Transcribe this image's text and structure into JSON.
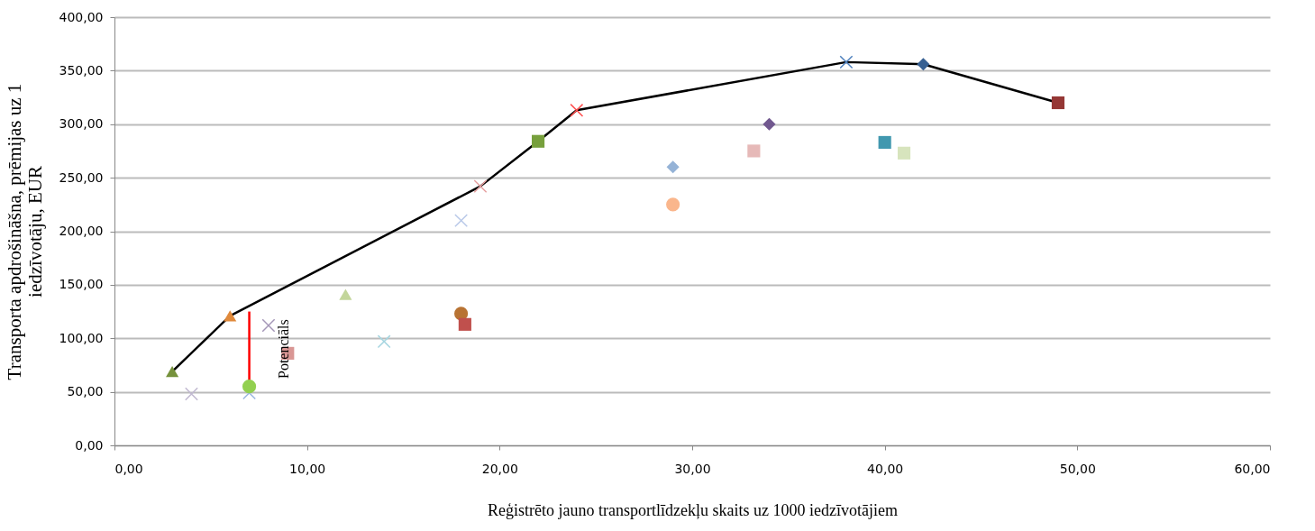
{
  "chart_data": {
    "type": "scatter",
    "xlabel": "Reģistrēto jauno transportlīdzekļu skaits  uz 1000 iedzīvotājiem",
    "ylabel": "Transporta  apdrošināšna, prēmijas uz 1\niedzīvotāju, EUR",
    "xlim": [
      0,
      60
    ],
    "ylim": [
      0,
      400
    ],
    "xticks": [
      {
        "value": 0,
        "label": "0,00"
      },
      {
        "value": 10,
        "label": "10,00"
      },
      {
        "value": 20,
        "label": "20,00"
      },
      {
        "value": 30,
        "label": "30,00"
      },
      {
        "value": 40,
        "label": "40,00"
      },
      {
        "value": 50,
        "label": "50,00"
      },
      {
        "value": 60,
        "label": "60,00"
      }
    ],
    "yticks": [
      {
        "value": 0,
        "label": "0,00"
      },
      {
        "value": 50,
        "label": "50,00"
      },
      {
        "value": 100,
        "label": "100,00"
      },
      {
        "value": 150,
        "label": "150,00"
      },
      {
        "value": 200,
        "label": "200,00"
      },
      {
        "value": 250,
        "label": "250,00"
      },
      {
        "value": 300,
        "label": "300,00"
      },
      {
        "value": 350,
        "label": "350,00"
      },
      {
        "value": 400,
        "label": "400,00"
      }
    ],
    "grid": "y",
    "annotations": [
      {
        "text": "Potenciāls",
        "x": 8.8,
        "y": 90
      }
    ],
    "series": [
      {
        "type": "line",
        "color": "#000000",
        "marker": "none",
        "x": [
          3,
          6,
          19,
          22,
          24,
          38,
          42,
          49
        ],
        "values": [
          69,
          121,
          242,
          284,
          313,
          358,
          356,
          320
        ]
      },
      {
        "type": "line",
        "color": "#ff0000",
        "marker": "none",
        "x": [
          7,
          7
        ],
        "values": [
          55,
          125
        ]
      },
      {
        "color": "#76923c",
        "marker": "triangle",
        "x": [
          3
        ],
        "values": [
          69
        ]
      },
      {
        "color": "#e08a3c",
        "marker": "triangle",
        "x": [
          6
        ],
        "values": [
          121
        ]
      },
      {
        "color": "#c0b8d0",
        "marker": "cross",
        "x": [
          4
        ],
        "values": [
          48
        ]
      },
      {
        "color": "#9cb8e0",
        "marker": "cross",
        "x": [
          7
        ],
        "values": [
          49
        ]
      },
      {
        "color": "#92d050",
        "marker": "circle",
        "x": [
          7
        ],
        "values": [
          55
        ]
      },
      {
        "color": "#a597b8",
        "marker": "cross",
        "x": [
          8
        ],
        "values": [
          112
        ]
      },
      {
        "color": "#d99694",
        "marker": "square",
        "x": [
          9
        ],
        "values": [
          86
        ]
      },
      {
        "color": "#c3d69b",
        "marker": "triangle",
        "x": [
          12
        ],
        "values": [
          141
        ]
      },
      {
        "color": "#a5d5e0",
        "marker": "cross",
        "x": [
          14
        ],
        "values": [
          97
        ]
      },
      {
        "color": "#b87333",
        "marker": "circle",
        "x": [
          18
        ],
        "values": [
          123
        ]
      },
      {
        "color": "#c0504d",
        "marker": "square",
        "x": [
          18.2
        ],
        "values": [
          113
        ]
      },
      {
        "color": "#b8c8e8",
        "marker": "cross",
        "x": [
          18
        ],
        "values": [
          210
        ]
      },
      {
        "color": "#e6a0a0",
        "marker": "cross",
        "x": [
          19
        ],
        "values": [
          242
        ]
      },
      {
        "color": "#77a03c",
        "marker": "square",
        "x": [
          22
        ],
        "values": [
          284
        ]
      },
      {
        "color": "#ff5050",
        "marker": "cross",
        "x": [
          24
        ],
        "values": [
          313
        ]
      },
      {
        "color": "#95b3d7",
        "marker": "diamond",
        "x": [
          29
        ],
        "values": [
          260
        ]
      },
      {
        "color": "#fab68c",
        "marker": "circle",
        "x": [
          29
        ],
        "values": [
          225
        ]
      },
      {
        "color": "#e6b9b8",
        "marker": "square",
        "x": [
          33.2
        ],
        "values": [
          275
        ]
      },
      {
        "color": "#71588f",
        "marker": "diamond",
        "x": [
          34
        ],
        "values": [
          300
        ]
      },
      {
        "color": "#4f81bd",
        "marker": "cross",
        "x": [
          38
        ],
        "values": [
          358
        ]
      },
      {
        "color": "#4198af",
        "marker": "square",
        "x": [
          40
        ],
        "values": [
          283
        ]
      },
      {
        "color": "#d7e4bd",
        "marker": "square",
        "x": [
          41
        ],
        "values": [
          273
        ]
      },
      {
        "color": "#376092",
        "marker": "diamond",
        "x": [
          42
        ],
        "values": [
          356
        ]
      },
      {
        "color": "#953735",
        "marker": "square",
        "x": [
          49
        ],
        "values": [
          320
        ]
      }
    ]
  }
}
